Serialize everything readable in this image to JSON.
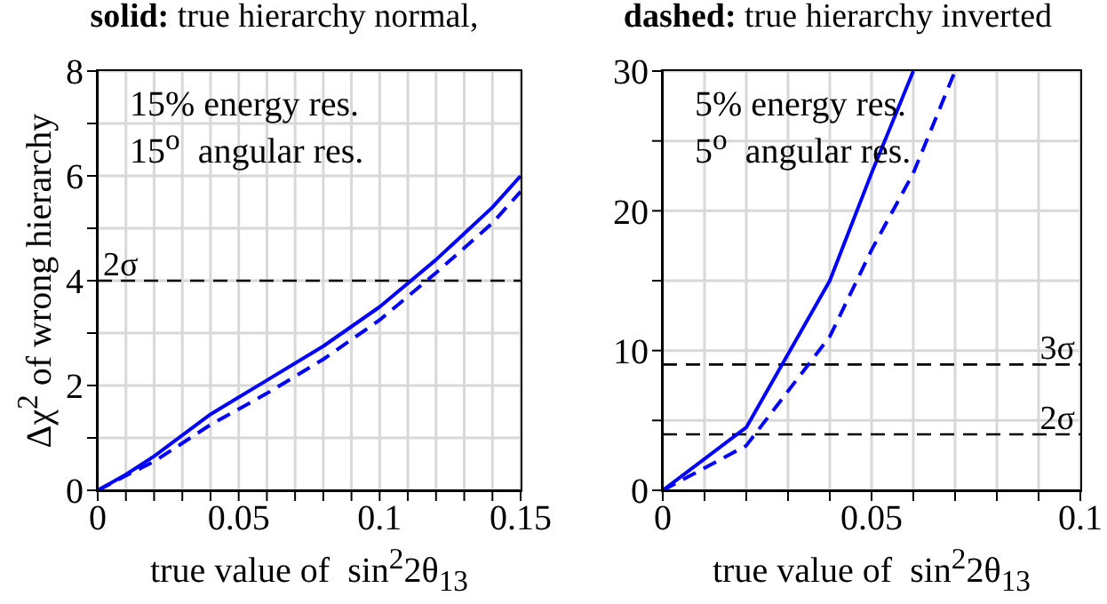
{
  "chart_data": [
    {
      "type": "line",
      "title": "solid: true hierarchy normal,",
      "xlabel": "true value of  sin$^{2}$2θ$_{13}$",
      "ylabel": "Δχ$^{2}$ of wrong hierarchy",
      "annotations": [
        "15% energy res.",
        "15$^{o}$  angular res."
      ],
      "xlim": [
        0,
        0.15
      ],
      "ylim": [
        0,
        8
      ],
      "xticks": [
        0,
        {
          "value": 0.01,
          "label": null
        },
        {
          "value": 0.02,
          "label": null
        },
        {
          "value": 0.03,
          "label": null
        },
        {
          "value": 0.04,
          "label": null
        },
        0.05,
        {
          "value": 0.06,
          "label": null
        },
        {
          "value": 0.07,
          "label": null
        },
        {
          "value": 0.08,
          "label": null
        },
        {
          "value": 0.09,
          "label": null
        },
        0.1,
        {
          "value": 0.11,
          "label": null
        },
        {
          "value": 0.12,
          "label": null
        },
        {
          "value": 0.13,
          "label": null
        },
        {
          "value": 0.14,
          "label": null
        },
        0.15
      ],
      "yticks": [
        0,
        {
          "value": 1,
          "label": null
        },
        2,
        {
          "value": 3,
          "label": null
        },
        4,
        {
          "value": 5,
          "label": null
        },
        6,
        {
          "value": 7,
          "label": null
        },
        8
      ],
      "grid": true,
      "marker": "none",
      "ref_lines": [
        {
          "axis": "y",
          "value": 4,
          "label": "2σ",
          "color": "#000000",
          "line_style": "dashed"
        }
      ],
      "series": [
        {
          "color": "#0000ff",
          "line_style": "solid",
          "x": [
            0,
            0.01,
            0.02,
            0.04,
            0.06,
            0.08,
            0.1,
            0.12,
            0.14,
            0.15
          ],
          "values": [
            0,
            0.3,
            0.65,
            1.45,
            2.1,
            2.75,
            3.5,
            4.4,
            5.4,
            6.0
          ]
        },
        {
          "color": "#0000ff",
          "line_style": "dashed",
          "x": [
            0,
            0.01,
            0.02,
            0.04,
            0.06,
            0.08,
            0.1,
            0.12,
            0.14,
            0.15
          ],
          "values": [
            0,
            0.28,
            0.55,
            1.25,
            1.85,
            2.5,
            3.25,
            4.15,
            5.1,
            5.7
          ]
        }
      ]
    },
    {
      "type": "line",
      "title": "dashed: true hierarchy inverted",
      "xlabel": "true value of  sin$^{2}$2θ$_{13}$",
      "annotations": [
        "5% energy res.",
        "5$^{o}$  angular res."
      ],
      "xlim": [
        0,
        0.1
      ],
      "ylim": [
        0,
        30
      ],
      "xticks": [
        0,
        {
          "value": 0.01,
          "label": null
        },
        {
          "value": 0.02,
          "label": null
        },
        {
          "value": 0.03,
          "label": null
        },
        {
          "value": 0.04,
          "label": null
        },
        0.05,
        {
          "value": 0.06,
          "label": null
        },
        {
          "value": 0.07,
          "label": null
        },
        {
          "value": 0.08,
          "label": null
        },
        {
          "value": 0.09,
          "label": null
        },
        0.1
      ],
      "yticks": [
        0,
        {
          "value": 5,
          "label": null
        },
        10,
        {
          "value": 15,
          "label": null
        },
        20,
        {
          "value": 25,
          "label": null
        },
        30
      ],
      "grid": true,
      "marker": "none",
      "ref_lines": [
        {
          "axis": "y",
          "value": 9,
          "label": "3σ",
          "color": "#000000",
          "line_style": "dashed"
        },
        {
          "axis": "y",
          "value": 4,
          "label": "2σ",
          "color": "#000000",
          "line_style": "dashed"
        }
      ],
      "series": [
        {
          "color": "#0000ff",
          "line_style": "solid",
          "x": [
            0,
            0.02,
            0.04,
            0.05,
            0.06
          ],
          "values": [
            0,
            4.5,
            15,
            22.7,
            30
          ]
        },
        {
          "color": "#0000ff",
          "line_style": "dashed",
          "x": [
            0,
            0.02,
            0.04,
            0.05,
            0.06,
            0.07
          ],
          "values": [
            0,
            3.2,
            11,
            17.2,
            22.7,
            30
          ]
        }
      ]
    }
  ]
}
